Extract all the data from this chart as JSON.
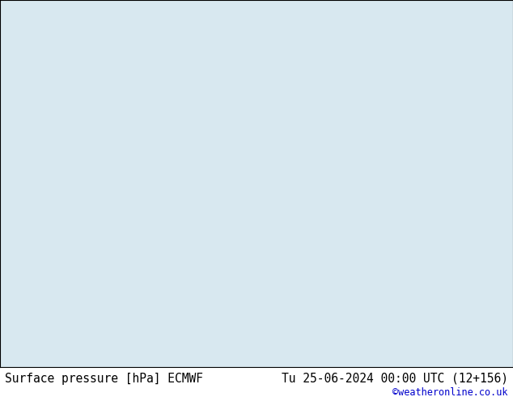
{
  "title_left": "Surface pressure [hPa] ECMWF",
  "title_right": "Tu 25-06-2024 00:00 UTC (12+156)",
  "watermark": "©weatheronline.co.uk",
  "ocean_color": "#d8e8f0",
  "land_color": "#b8dca0",
  "mountain_color": "#c8b090",
  "border_color": "#808080",
  "coastline_color": "#404040",
  "title_fontsize": 10.5,
  "watermark_color": "#0000cc",
  "fig_width": 6.34,
  "fig_height": 4.9,
  "dpi": 100,
  "bottom_bar_color": "#e0e0e0",
  "label_fontsize": 6,
  "map_west": -85,
  "map_east": 5,
  "map_south": -58,
  "map_north": 15,
  "pressure_base": 1013.25
}
